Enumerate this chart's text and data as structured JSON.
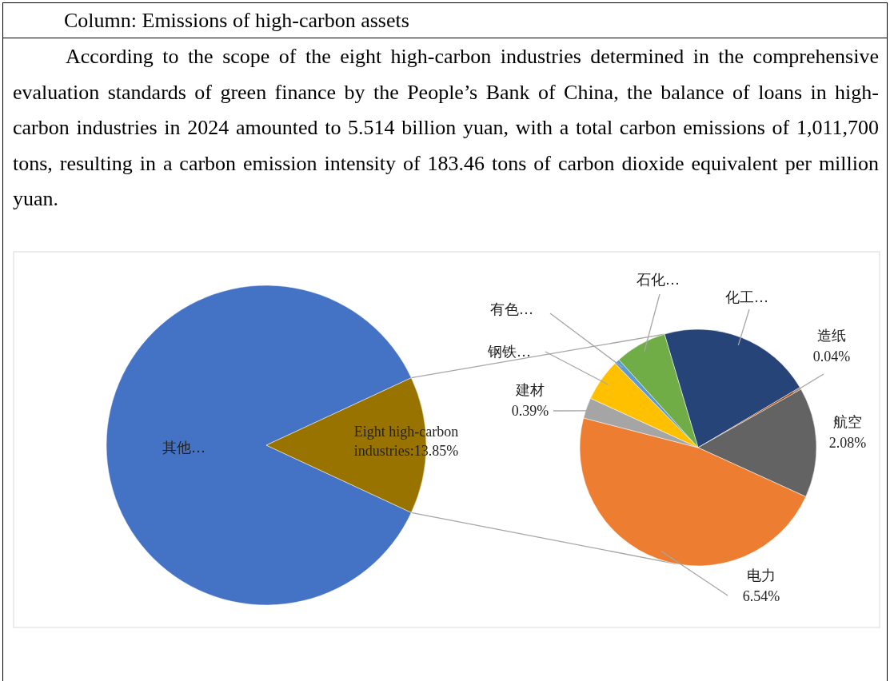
{
  "chart_data": [
    {
      "type": "pie",
      "title": "Column: Emissions of high-carbon assets",
      "subtitle": "According to the scope of the eight high-carbon industries determined in the comprehensive evaluation standards of green finance by the People’s Bank of China, the balance of loans in high-carbon industries in 2024 amounted to 5.514 billion yuan, with a total carbon emissions of 1,011,700 tons, resulting in a carbon emission intensity of 183.46 tons of carbon dioxide equivalent per million yuan.",
      "categories": [
        "其他…",
        "Eight high-carbon industries"
      ],
      "values": [
        86.15,
        13.85
      ],
      "colors": [
        "#4472c4",
        "#997300"
      ],
      "value_labels": [
        null,
        "13.85%"
      ]
    },
    {
      "type": "pie",
      "categories": [
        "化工…",
        "造纸",
        "航空",
        "电力",
        "建材",
        "钢铁…",
        "有色…",
        "石化…"
      ],
      "values": [
        2.92,
        0.04,
        2.08,
        6.54,
        0.39,
        0.8,
        0.1,
        0.98
      ],
      "colors": [
        "#264478",
        "#9e480e",
        "#636363",
        "#ed7d31",
        "#a5a5a5",
        "#ffc000",
        "#5b9bd5",
        "#70ad47"
      ],
      "value_labels": [
        null,
        "0.04%",
        "2.08%",
        "6.54%",
        "0.39%",
        null,
        null,
        null
      ]
    }
  ]
}
